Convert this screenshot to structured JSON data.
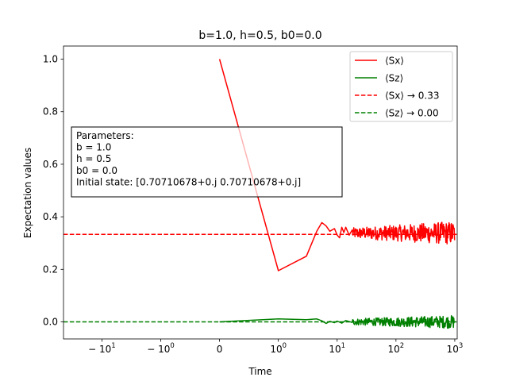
{
  "chart_data": {
    "type": "line",
    "title": "b=1.0, h=0.5, b0=0.0",
    "xlabel": "Time",
    "ylabel": "Expectation values",
    "x_scale": "symlog",
    "x_ticks": [
      {
        "value": -10,
        "base": "− 10",
        "exp": "1"
      },
      {
        "value": -1,
        "base": "− 10",
        "exp": "0"
      },
      {
        "value": 0,
        "base": "0",
        "exp": ""
      },
      {
        "value": 1,
        "base": "10",
        "exp": "0"
      },
      {
        "value": 10,
        "base": "10",
        "exp": "1"
      },
      {
        "value": 100,
        "base": "10",
        "exp": "2"
      },
      {
        "value": 1000,
        "base": "10",
        "exp": "3"
      }
    ],
    "y_ticks": [
      "0.0",
      "0.2",
      "0.4",
      "0.6",
      "0.8",
      "1.0"
    ],
    "xlim": [
      -45,
      1100
    ],
    "ylim": [
      -0.065,
      1.05
    ],
    "grid": false,
    "legend_position": "top-right",
    "series": [
      {
        "name": "⟨Sx⟩",
        "color": "#ff0000",
        "style": "solid",
        "x": [
          0,
          1,
          3,
          4.5,
          5.5,
          6.5,
          7.5,
          9,
          10,
          11,
          12,
          13,
          14,
          16,
          18
        ],
        "y": [
          1.0,
          0.195,
          0.25,
          0.345,
          0.378,
          0.365,
          0.345,
          0.355,
          0.33,
          0.32,
          0.36,
          0.34,
          0.36,
          0.33,
          0.35
        ],
        "noisy_tail": {
          "from": 18,
          "to": 1000,
          "center": 0.338,
          "amplitude_start": 0.02,
          "amplitude_end": 0.045
        }
      },
      {
        "name": "⟨Sz⟩",
        "color": "#008000",
        "style": "solid",
        "x": [
          0,
          1,
          3,
          4.5,
          5.5,
          6.5,
          7.5,
          9,
          10,
          12,
          14,
          18
        ],
        "y": [
          0.0,
          0.011,
          0.008,
          0.011,
          0.004,
          -0.006,
          0.002,
          -0.003,
          0.003,
          -0.005,
          0.005,
          -0.002
        ],
        "noisy_tail": {
          "from": 18,
          "to": 1000,
          "center": 0.0,
          "amplitude_start": 0.012,
          "amplitude_end": 0.025
        }
      },
      {
        "name": "⟨Sx⟩ → 0.33",
        "color": "#ff0000",
        "style": "dashed",
        "y_constant": 0.333
      },
      {
        "name": "⟨Sz⟩ → 0.00",
        "color": "#008000",
        "style": "dashed",
        "y_constant": 0.0
      }
    ],
    "annotation": {
      "lines": [
        "Parameters:",
        "b = 1.0",
        "h = 0.5",
        "b0 = 0.0",
        "Initial state: [0.70710678+0.j 0.70710678+0.j]"
      ]
    }
  }
}
